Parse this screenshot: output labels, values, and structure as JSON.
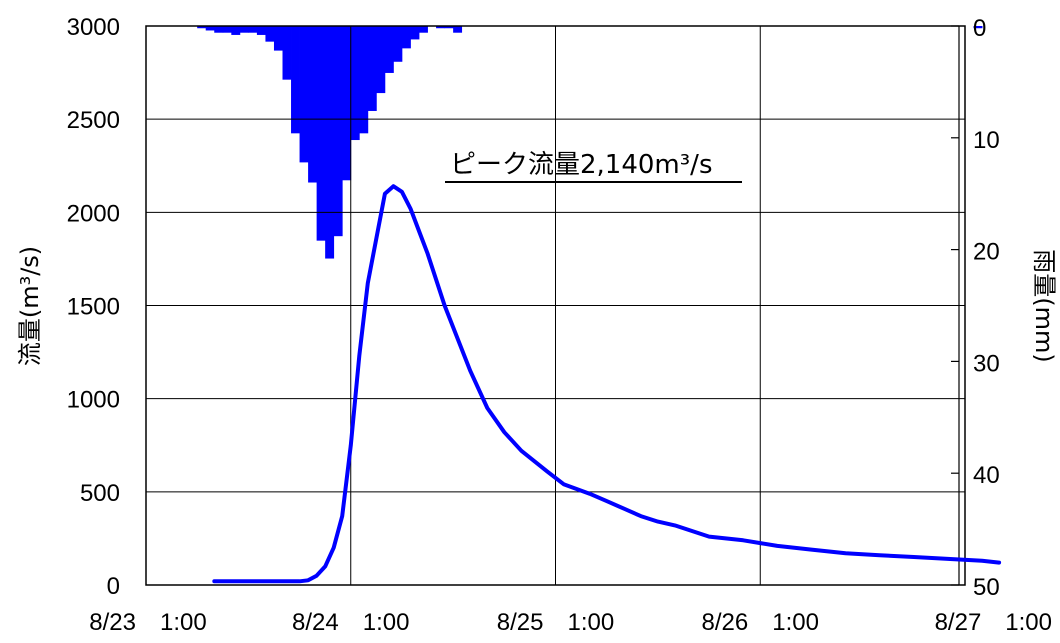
{
  "chart_data": {
    "type": "line",
    "y_left_label": "流量(m³/s)",
    "y_right_label": "雨量(mm)",
    "x_ticks": [
      "8/23　1:00",
      "8/24　1:00",
      "8/25　1:00",
      "8/26　1:00",
      "8/27　1:00"
    ],
    "y_left_ticks": [
      "0",
      "500",
      "1000",
      "1500",
      "2000",
      "2500",
      "3000"
    ],
    "y_right_ticks": [
      "0",
      "10",
      "20",
      "30",
      "40",
      "50"
    ],
    "ylim_left": [
      0,
      3000
    ],
    "ylim_right_inverted": [
      0,
      50
    ],
    "grid": true,
    "annotation": "ピーク流量2,140m³/s",
    "colors": {
      "flow": "#0000ff",
      "rain": "#0000ff",
      "grid": "#000000"
    },
    "flow_series": {
      "name": "流量",
      "x_hours": [
        8,
        10,
        12,
        14,
        15,
        16,
        17,
        18,
        19,
        20,
        21,
        22,
        23,
        24,
        25,
        26,
        28,
        29,
        30,
        31,
        32,
        33,
        35,
        38,
        40,
        42,
        44,
        47,
        49,
        52,
        54,
        56,
        58,
        60,
        62,
        66,
        70,
        74,
        78,
        82,
        86,
        90,
        94,
        98,
        100
      ],
      "y_values": [
        20,
        20,
        20,
        20,
        20,
        20,
        20,
        20,
        25,
        50,
        100,
        200,
        370,
        750,
        1230,
        1620,
        2100,
        2140,
        2110,
        2020,
        1900,
        1780,
        1500,
        1150,
        950,
        820,
        720,
        610,
        540,
        490,
        450,
        410,
        370,
        340,
        320,
        260,
        240,
        210,
        190,
        170,
        160,
        150,
        140,
        130,
        120
      ]
    },
    "rain_series": {
      "name": "雨量",
      "x_hours": [
        7,
        8,
        9,
        10,
        11,
        12,
        13,
        14,
        15,
        16,
        17,
        18,
        19,
        20,
        21,
        22,
        23,
        24,
        25,
        26,
        27,
        28,
        29,
        30,
        31,
        32,
        33,
        35,
        36,
        37,
        98
      ],
      "mm": [
        0.2,
        0.4,
        0.6,
        0.6,
        0.8,
        0.6,
        0.6,
        0.8,
        1.4,
        2.2,
        4.8,
        9.6,
        12.2,
        14.0,
        19.2,
        20.8,
        18.8,
        13.8,
        10.2,
        9.6,
        7.6,
        6.0,
        4.2,
        3.2,
        2.0,
        1.2,
        0.6,
        0.2,
        0.2,
        0.6,
        0.2
      ]
    }
  }
}
